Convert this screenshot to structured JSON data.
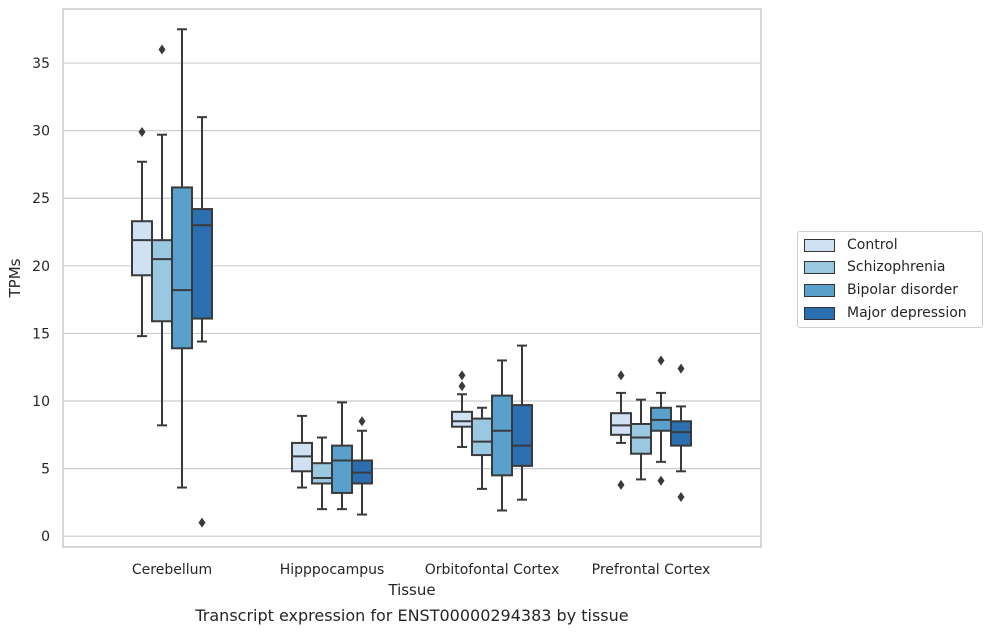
{
  "chart_data": {
    "type": "box",
    "caption": "Transcript expression for ENST00000294383 by tissue",
    "xlabel": "Tissue",
    "ylabel": "TPMs",
    "ylim": [
      -0.8,
      39.0
    ],
    "yticks": [
      0,
      5,
      10,
      15,
      20,
      25,
      30,
      35
    ],
    "grid": "horizontal",
    "legend_position": "right",
    "categories": [
      "Cerebellum",
      "Hipppocampus",
      "Orbitofontal Cortex",
      "Prefrontal Cortex"
    ],
    "series": [
      {
        "name": "Control",
        "color": "#cfe1f2",
        "boxes": [
          {
            "whisker_low": 14.8,
            "q1": 19.3,
            "median": 21.9,
            "q3": 23.3,
            "whisker_high": 27.7,
            "outliers": [
              29.9
            ]
          },
          {
            "whisker_low": 3.6,
            "q1": 4.8,
            "median": 5.9,
            "q3": 6.9,
            "whisker_high": 8.9,
            "outliers": []
          },
          {
            "whisker_low": 6.6,
            "q1": 8.1,
            "median": 8.5,
            "q3": 9.2,
            "whisker_high": 10.5,
            "outliers": [
              11.1,
              11.9
            ]
          },
          {
            "whisker_low": 6.9,
            "q1": 7.5,
            "median": 8.2,
            "q3": 9.1,
            "whisker_high": 10.6,
            "outliers": [
              11.9,
              3.8
            ]
          }
        ]
      },
      {
        "name": "Schizophrenia",
        "color": "#9ac8e0",
        "boxes": [
          {
            "whisker_low": 8.2,
            "q1": 15.9,
            "median": 20.5,
            "q3": 21.9,
            "whisker_high": 29.7,
            "outliers": [
              36.0
            ]
          },
          {
            "whisker_low": 2.0,
            "q1": 3.9,
            "median": 4.3,
            "q3": 5.4,
            "whisker_high": 7.3,
            "outliers": []
          },
          {
            "whisker_low": 3.5,
            "q1": 6.0,
            "median": 7.0,
            "q3": 8.7,
            "whisker_high": 9.5,
            "outliers": []
          },
          {
            "whisker_low": 4.2,
            "q1": 6.1,
            "median": 7.3,
            "q3": 8.3,
            "whisker_high": 10.1,
            "outliers": []
          }
        ]
      },
      {
        "name": "Bipolar disorder",
        "color": "#5aa0cd",
        "boxes": [
          {
            "whisker_low": 3.6,
            "q1": 13.9,
            "median": 18.2,
            "q3": 25.8,
            "whisker_high": 37.5,
            "outliers": []
          },
          {
            "whisker_low": 2.0,
            "q1": 3.2,
            "median": 5.6,
            "q3": 6.7,
            "whisker_high": 9.9,
            "outliers": []
          },
          {
            "whisker_low": 1.9,
            "q1": 4.5,
            "median": 7.8,
            "q3": 10.4,
            "whisker_high": 13.0,
            "outliers": []
          },
          {
            "whisker_low": 5.5,
            "q1": 7.8,
            "median": 8.6,
            "q3": 9.5,
            "whisker_high": 10.6,
            "outliers": [
              13.0,
              4.1
            ]
          }
        ]
      },
      {
        "name": "Major depression",
        "color": "#2a6fb0",
        "boxes": [
          {
            "whisker_low": 14.4,
            "q1": 16.1,
            "median": 23.0,
            "q3": 24.2,
            "whisker_high": 31.0,
            "outliers": [
              1.0
            ]
          },
          {
            "whisker_low": 1.6,
            "q1": 3.9,
            "median": 4.7,
            "q3": 5.6,
            "whisker_high": 7.8,
            "outliers": [
              8.5
            ]
          },
          {
            "whisker_low": 2.7,
            "q1": 5.2,
            "median": 6.7,
            "q3": 9.7,
            "whisker_high": 14.1,
            "outliers": []
          },
          {
            "whisker_low": 4.8,
            "q1": 6.7,
            "median": 7.7,
            "q3": 8.5,
            "whisker_high": 9.6,
            "outliers": [
              12.4,
              2.9
            ]
          }
        ]
      }
    ]
  }
}
